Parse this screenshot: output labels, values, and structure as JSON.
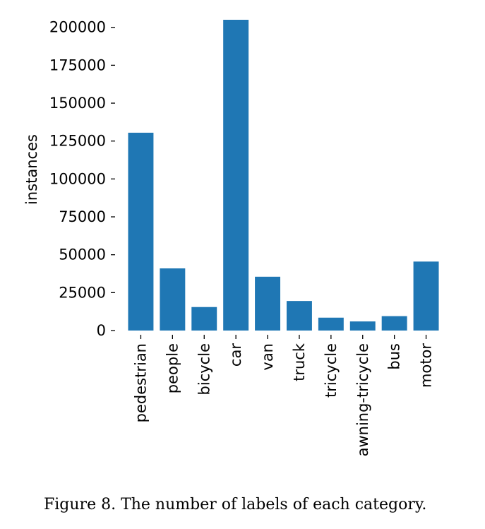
{
  "chart_data": {
    "type": "bar",
    "categories": [
      "pedestrian",
      "people",
      "bicycle",
      "car",
      "van",
      "truck",
      "tricycle",
      "awning-tricycle",
      "bus",
      "motor"
    ],
    "values": [
      130500,
      41000,
      15500,
      205000,
      35500,
      19500,
      8500,
      6000,
      9500,
      45500
    ],
    "xlabel": "",
    "ylabel": "instances",
    "ylim": [
      0,
      205000
    ],
    "yticks": [
      "0",
      "25000",
      "50000",
      "75000",
      "100000",
      "125000",
      "150000",
      "175000",
      "200000"
    ],
    "bar_color": "#1f77b4",
    "grid": false
  },
  "caption": "Figure 8. The number of labels of each category."
}
